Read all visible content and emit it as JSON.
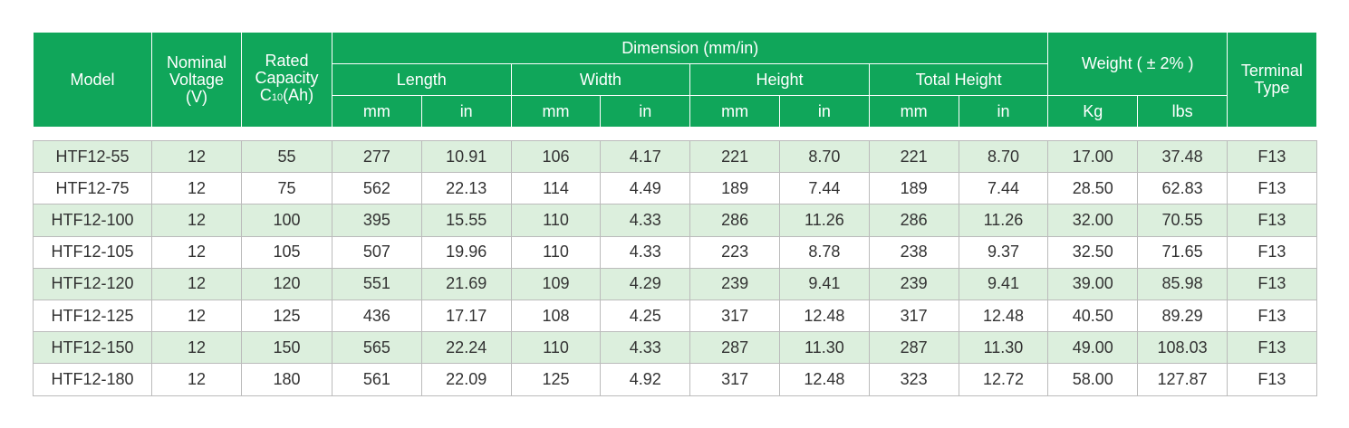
{
  "header": {
    "model": "Model",
    "voltage": [
      "Nominal",
      "Voltage",
      "(V)"
    ],
    "capacity": {
      "lines": [
        "Rated",
        "Capacity"
      ],
      "symbol": "C",
      "subscript": "10",
      "unit": "(Ah)"
    },
    "dimension": "Dimension (mm/in)",
    "groups": [
      "Length",
      "Width",
      "Height",
      "Total Height"
    ],
    "weight": "Weight ( ± 2% )",
    "terminal": [
      "Terminal",
      "Type"
    ],
    "units": [
      "mm",
      "in",
      "mm",
      "in",
      "mm",
      "in",
      "mm",
      "in",
      "Kg",
      "lbs"
    ]
  },
  "table": {
    "rows": [
      [
        "HTF12-55",
        "12",
        "55",
        "277",
        "10.91",
        "106",
        "4.17",
        "221",
        "8.70",
        "221",
        "8.70",
        "17.00",
        "37.48",
        "F13"
      ],
      [
        "HTF12-75",
        "12",
        "75",
        "562",
        "22.13",
        "114",
        "4.49",
        "189",
        "7.44",
        "189",
        "7.44",
        "28.50",
        "62.83",
        "F13"
      ],
      [
        "HTF12-100",
        "12",
        "100",
        "395",
        "15.55",
        "110",
        "4.33",
        "286",
        "11.26",
        "286",
        "11.26",
        "32.00",
        "70.55",
        "F13"
      ],
      [
        "HTF12-105",
        "12",
        "105",
        "507",
        "19.96",
        "110",
        "4.33",
        "223",
        "8.78",
        "238",
        "9.37",
        "32.50",
        "71.65",
        "F13"
      ],
      [
        "HTF12-120",
        "12",
        "120",
        "551",
        "21.69",
        "109",
        "4.29",
        "239",
        "9.41",
        "239",
        "9.41",
        "39.00",
        "85.98",
        "F13"
      ],
      [
        "HTF12-125",
        "12",
        "125",
        "436",
        "17.17",
        "108",
        "4.25",
        "317",
        "12.48",
        "317",
        "12.48",
        "40.50",
        "89.29",
        "F13"
      ],
      [
        "HTF12-150",
        "12",
        "150",
        "565",
        "22.24",
        "110",
        "4.33",
        "287",
        "11.30",
        "287",
        "11.30",
        "49.00",
        "108.03",
        "F13"
      ],
      [
        "HTF12-180",
        "12",
        "180",
        "561",
        "22.09",
        "125",
        "4.92",
        "317",
        "12.48",
        "323",
        "12.72",
        "58.00",
        "127.87",
        "F13"
      ]
    ]
  }
}
